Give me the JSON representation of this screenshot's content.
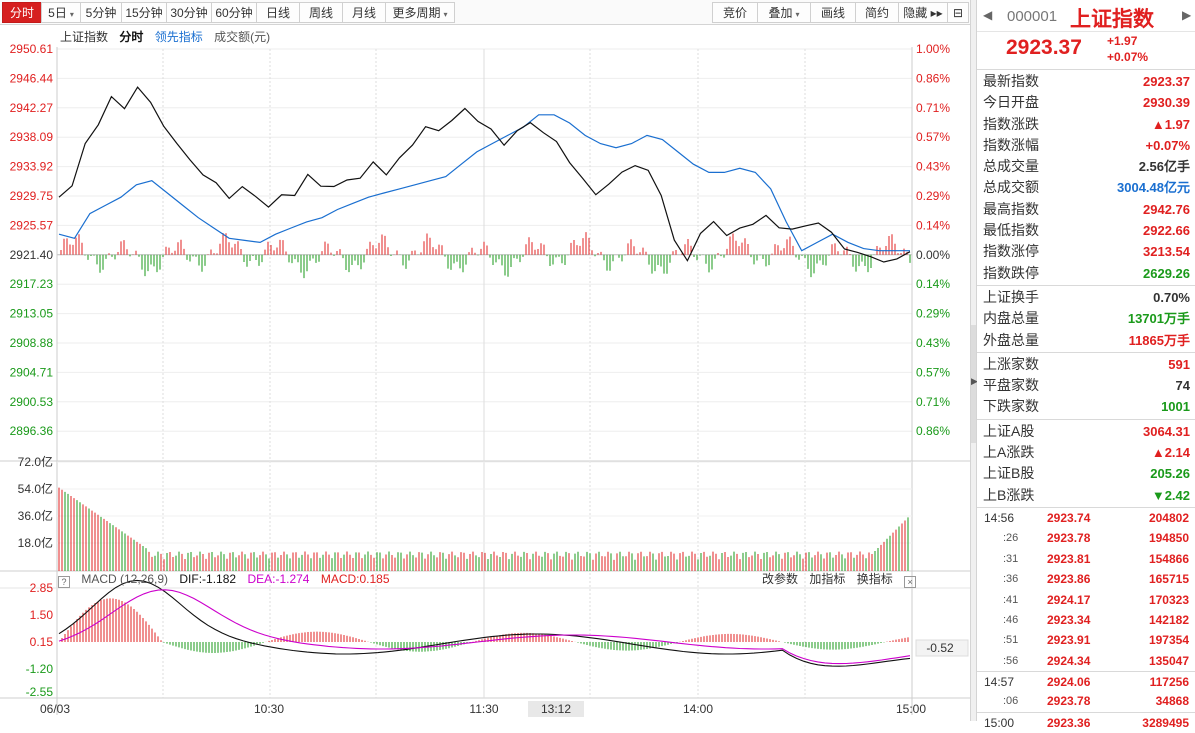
{
  "toolbar": {
    "left": [
      {
        "label": "分时",
        "active": true
      },
      {
        "label": "5日",
        "caret": true
      },
      {
        "label": "5分钟"
      },
      {
        "label": "15分钟"
      },
      {
        "label": "30分钟"
      },
      {
        "label": "60分钟"
      },
      {
        "label": "日线"
      },
      {
        "label": "周线"
      },
      {
        "label": "月线"
      },
      {
        "label": "更多周期",
        "caret": true
      }
    ],
    "right": [
      {
        "label": "竞价"
      },
      {
        "label": "叠加",
        "caret": true
      },
      {
        "label": "画线"
      },
      {
        "label": "简约"
      },
      {
        "label": "隐藏 ▸▸"
      },
      {
        "label": "⊟"
      }
    ]
  },
  "legend": {
    "name": "上证指数",
    "period": "分时",
    "leading": "领先指标",
    "volume": "成交额(元)"
  },
  "price_axis": [
    "2950.61",
    "2946.44",
    "2942.27",
    "2938.09",
    "2933.92",
    "2929.75",
    "2925.57",
    "2921.40",
    "2917.23",
    "2913.05",
    "2908.88",
    "2904.71",
    "2900.53",
    "2896.36"
  ],
  "pct_axis": [
    "1.00%",
    "0.86%",
    "0.71%",
    "0.57%",
    "0.43%",
    "0.29%",
    "0.14%",
    "0.00%",
    "0.14%",
    "0.29%",
    "0.43%",
    "0.57%",
    "0.71%",
    "0.86%"
  ],
  "volume_axis": [
    "72.0亿",
    "54.0亿",
    "36.0亿",
    "18.0亿"
  ],
  "macd_axis": [
    "2.85",
    "1.50",
    "0.15",
    "-1.20",
    "-2.55"
  ],
  "macd_legend": {
    "title": "MACD (12,26,9)",
    "dif": "DIF:-1.182",
    "dea": "DEA:-1.274",
    "macd": "MACD:0.185",
    "current": "-0.52"
  },
  "macd_tools": [
    "改参数",
    "加指标",
    "换指标"
  ],
  "time_axis": [
    "06/03",
    "10:30",
    "11:30",
    "13:12",
    "14:00",
    "15:00"
  ],
  "side": {
    "nav_prev": "◀",
    "nav_next": "▶",
    "code": "000001",
    "name": "上证指数",
    "price": "2923.37",
    "change": "+1.97",
    "change_pct": "+0.07%",
    "groups": [
      [
        {
          "k": "最新指数",
          "v": "2923.37",
          "c": "red"
        },
        {
          "k": "今日开盘",
          "v": "2930.39",
          "c": "red"
        },
        {
          "k": "指数涨跌",
          "v": "▲1.97",
          "c": "red"
        },
        {
          "k": "指数涨幅",
          "v": "+0.07%",
          "c": "red"
        },
        {
          "k": "总成交量",
          "v": "2.56亿手",
          "c": "black"
        },
        {
          "k": "总成交额",
          "v": "3004.48亿元",
          "c": "blue"
        },
        {
          "k": "最高指数",
          "v": "2942.76",
          "c": "red"
        },
        {
          "k": "最低指数",
          "v": "2922.66",
          "c": "red"
        },
        {
          "k": "指数涨停",
          "v": "3213.54",
          "c": "red"
        },
        {
          "k": "指数跌停",
          "v": "2629.26",
          "c": "green"
        }
      ],
      [
        {
          "k": "上证换手",
          "v": "0.70%",
          "c": "black"
        },
        {
          "k": "内盘总量",
          "v": "13701万手",
          "c": "green"
        },
        {
          "k": "外盘总量",
          "v": "11865万手",
          "c": "red"
        }
      ],
      [
        {
          "k": "上涨家数",
          "v": "591",
          "c": "red"
        },
        {
          "k": "平盘家数",
          "v": "74",
          "c": "black"
        },
        {
          "k": "下跌家数",
          "v": "1001",
          "c": "green"
        }
      ],
      [
        {
          "k": "上证A股",
          "v": "3064.31",
          "c": "red"
        },
        {
          "k": "上A涨跌",
          "v": "▲2.14",
          "c": "red"
        },
        {
          "k": "上证B股",
          "v": "205.26",
          "c": "green"
        },
        {
          "k": "上B涨跌",
          "v": "▼2.42",
          "c": "green"
        }
      ]
    ],
    "ticks": [
      {
        "t": "14:56",
        "sub": false,
        "p": "2923.74",
        "q": "204802"
      },
      {
        "t": ":26",
        "sub": true,
        "p": "2923.78",
        "q": "194850"
      },
      {
        "t": ":31",
        "sub": true,
        "p": "2923.81",
        "q": "154866"
      },
      {
        "t": ":36",
        "sub": true,
        "p": "2923.86",
        "q": "165715"
      },
      {
        "t": ":41",
        "sub": true,
        "p": "2924.17",
        "q": "170323"
      },
      {
        "t": ":46",
        "sub": true,
        "p": "2923.34",
        "q": "142182"
      },
      {
        "t": ":51",
        "sub": true,
        "p": "2923.91",
        "q": "197354"
      },
      {
        "t": ":56",
        "sub": true,
        "p": "2924.34",
        "q": "135047"
      },
      {
        "t": "14:57",
        "sub": false,
        "p": "2924.06",
        "q": "117256",
        "sep": true
      },
      {
        "t": ":06",
        "sub": true,
        "p": "2923.78",
        "q": "34868"
      },
      {
        "t": "15:00",
        "sub": false,
        "p": "2923.36",
        "q": "3289495",
        "sep": true
      }
    ]
  },
  "colors": {
    "up": "#e02020",
    "down": "#1a9a1a",
    "price_line": "#111111",
    "avg_line": "#1a6fd0",
    "dea_line": "#cc00cc"
  },
  "series": {
    "price_shape": [
      0.28,
      0.33,
      0.55,
      0.62,
      0.78,
      0.7,
      0.82,
      0.74,
      0.62,
      0.55,
      0.45,
      0.4,
      0.34,
      0.28,
      0.33,
      0.28,
      0.24,
      0.28,
      0.3,
      0.38,
      0.34,
      0.33,
      0.36,
      0.38,
      0.44,
      0.4,
      0.46,
      0.54,
      0.62,
      0.6,
      0.66,
      0.7,
      0.66,
      0.6,
      0.54,
      0.6,
      0.64,
      0.6,
      0.54,
      0.46,
      0.36,
      0.3,
      0.34,
      0.4,
      0.44,
      0.4,
      0.3,
      0.06,
      -0.02,
      0.1,
      0.16,
      0.1,
      0.12,
      0.16,
      0.18,
      0.14,
      0.12,
      0.14,
      0.16,
      0.1,
      0.04,
      0.0,
      0.0,
      -0.04,
      -0.02,
      0.02
    ],
    "avg_shape": [
      0.1,
      0.08,
      0.2,
      0.24,
      0.28,
      0.34,
      0.36,
      0.3,
      0.24,
      0.18,
      0.13,
      0.08,
      0.07,
      0.06,
      0.1,
      0.13,
      0.16,
      0.18,
      0.22,
      0.25,
      0.28,
      0.3,
      0.32,
      0.34,
      0.36,
      0.38,
      0.44,
      0.5,
      0.54,
      0.58,
      0.62,
      0.68,
      0.68,
      0.64,
      0.58,
      0.54,
      0.52,
      0.54,
      0.58,
      0.56,
      0.5,
      0.44,
      0.4,
      0.4,
      0.42,
      0.4,
      0.32,
      0.16,
      0.02,
      0.06,
      0.1,
      0.06,
      0.03,
      0.02,
      0.02,
      0.02
    ]
  }
}
